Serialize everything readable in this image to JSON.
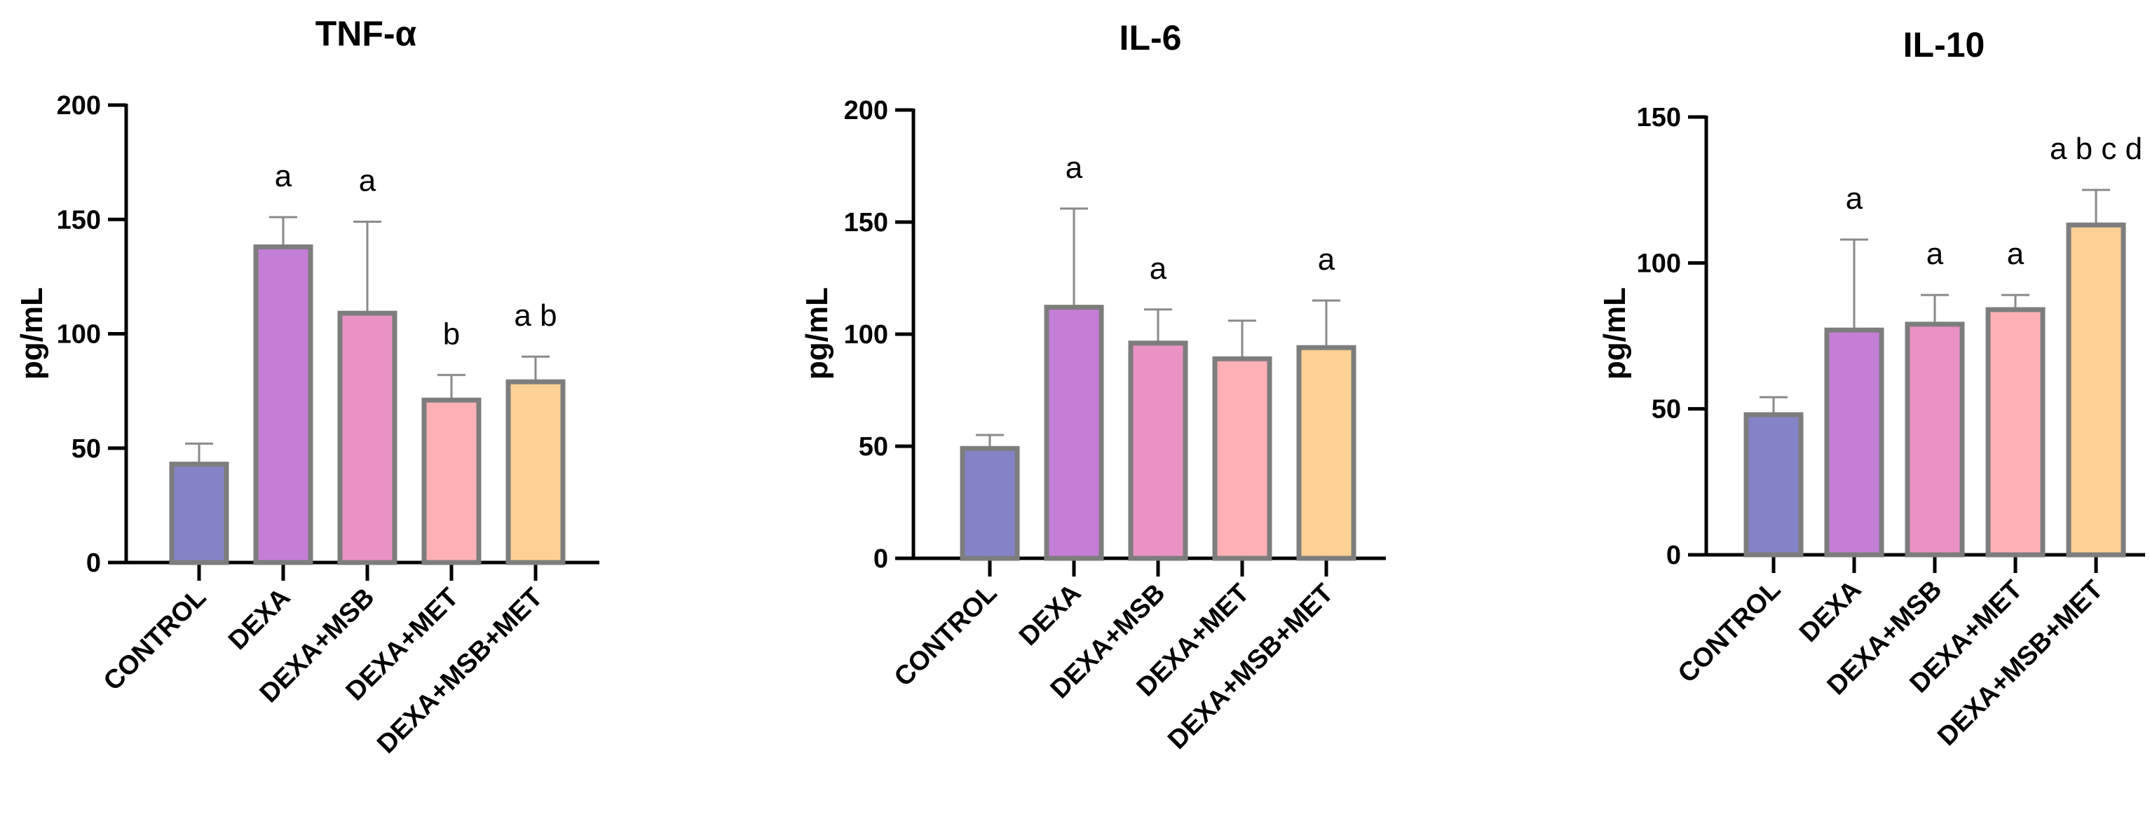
{
  "colors": {
    "axis": "#000000",
    "bar_outline": "#7d7d7d",
    "error_bar": "#8a8a8a",
    "bars": [
      "#8583c7",
      "#c47ed6",
      "#ea92c5",
      "#fdb1b5",
      "#fdd194"
    ]
  },
  "chart_data": [
    {
      "type": "bar",
      "title": "TNF-α",
      "ylabel": "pg/mL",
      "xlabel": "",
      "ylim": [
        0,
        200
      ],
      "yticks": [
        0,
        50,
        100,
        150,
        200
      ],
      "grid": false,
      "categories": [
        "CONTROL",
        "DEXA",
        "DEXA+MSB",
        "DEXA+MET",
        "DEXA+MSB+MET"
      ],
      "values": [
        43,
        138,
        109,
        71,
        79
      ],
      "errors": [
        9,
        13,
        40,
        11,
        11
      ],
      "annotations": [
        "",
        "a",
        "a",
        "b",
        "a  b"
      ]
    },
    {
      "type": "bar",
      "title": "IL-6",
      "ylabel": "pg/mL",
      "xlabel": "",
      "ylim": [
        0,
        200
      ],
      "yticks": [
        0,
        50,
        100,
        150,
        200
      ],
      "grid": false,
      "categories": [
        "CONTROL",
        "DEXA",
        "DEXA+MSB",
        "DEXA+MET",
        "DEXA+MSB+MET"
      ],
      "values": [
        49,
        112,
        96,
        89,
        94
      ],
      "errors": [
        6,
        44,
        15,
        17,
        21
      ],
      "annotations": [
        "",
        "a",
        "a",
        "",
        "a"
      ]
    },
    {
      "type": "bar",
      "title": "IL-10",
      "ylabel": "pg/mL",
      "xlabel": "",
      "ylim": [
        0,
        150
      ],
      "yticks": [
        0,
        50,
        100,
        150
      ],
      "grid": false,
      "categories": [
        "CONTROL",
        "DEXA",
        "DEXA+MSB",
        "DEXA+MET",
        "DEXA+MSB+MET"
      ],
      "values": [
        48,
        77,
        79,
        84,
        113
      ],
      "errors": [
        6,
        31,
        10,
        5,
        12
      ],
      "annotations": [
        "",
        "a",
        "a",
        "a",
        "a  b  c  d"
      ]
    }
  ]
}
